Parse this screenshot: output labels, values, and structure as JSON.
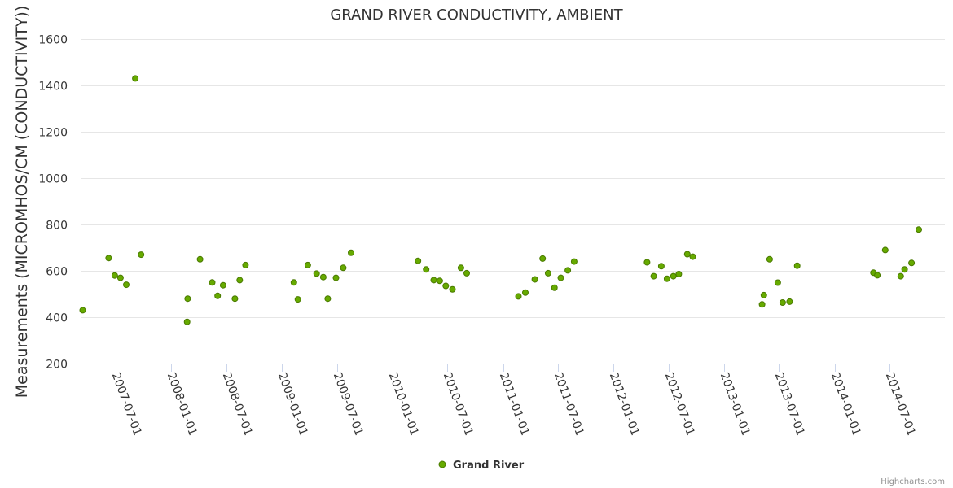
{
  "chart_data": {
    "type": "scatter",
    "title": "GRAND RIVER CONDUCTIVITY, AMBIENT",
    "xlabel": "",
    "ylabel": "Measurements (MICROMHOS/CM (CONDUCTIVITY))",
    "ylim": [
      200,
      1600
    ],
    "yticks": [
      200,
      400,
      600,
      800,
      1000,
      1200,
      1400,
      1600
    ],
    "xlim": [
      "2007-03-10",
      "2014-12-31"
    ],
    "xticks": [
      "2007-07-01",
      "2008-01-01",
      "2008-07-01",
      "2009-01-01",
      "2009-07-01",
      "2010-01-01",
      "2010-07-01",
      "2011-01-01",
      "2011-07-01",
      "2012-01-01",
      "2012-07-01",
      "2013-01-01",
      "2013-07-01",
      "2014-01-01",
      "2014-07-01"
    ],
    "grid": true,
    "legend_position": "bottom-center",
    "color": "#66aa00",
    "series": [
      {
        "name": "Grand River",
        "points": [
          [
            "2007-03-14",
            430
          ],
          [
            "2007-06-08",
            655
          ],
          [
            "2007-06-28",
            580
          ],
          [
            "2007-07-17",
            570
          ],
          [
            "2007-08-05",
            540
          ],
          [
            "2007-09-04",
            1430
          ],
          [
            "2007-09-23",
            670
          ],
          [
            "2008-02-22",
            380
          ],
          [
            "2008-02-24",
            480
          ],
          [
            "2008-04-05",
            650
          ],
          [
            "2008-05-15",
            550
          ],
          [
            "2008-06-02",
            492
          ],
          [
            "2008-06-20",
            538
          ],
          [
            "2008-07-29",
            480
          ],
          [
            "2008-08-14",
            560
          ],
          [
            "2008-09-02",
            625
          ],
          [
            "2009-02-09",
            550
          ],
          [
            "2009-02-22",
            477
          ],
          [
            "2009-03-27",
            625
          ],
          [
            "2009-04-25",
            588
          ],
          [
            "2009-05-17",
            573
          ],
          [
            "2009-06-01",
            480
          ],
          [
            "2009-06-28",
            570
          ],
          [
            "2009-07-22",
            613
          ],
          [
            "2009-08-17",
            678
          ],
          [
            "2010-03-26",
            643
          ],
          [
            "2010-04-22",
            606
          ],
          [
            "2010-05-17",
            560
          ],
          [
            "2010-06-06",
            557
          ],
          [
            "2010-06-26",
            535
          ],
          [
            "2010-07-18",
            520
          ],
          [
            "2010-08-15",
            613
          ],
          [
            "2010-09-03",
            590
          ],
          [
            "2011-02-21",
            490
          ],
          [
            "2011-03-16",
            506
          ],
          [
            "2011-04-16",
            563
          ],
          [
            "2011-05-12",
            653
          ],
          [
            "2011-05-30",
            590
          ],
          [
            "2011-06-20",
            527
          ],
          [
            "2011-07-11",
            570
          ],
          [
            "2011-08-03",
            602
          ],
          [
            "2011-08-24",
            640
          ],
          [
            "2012-04-21",
            637
          ],
          [
            "2012-05-13",
            577
          ],
          [
            "2012-06-07",
            620
          ],
          [
            "2012-06-26",
            566
          ],
          [
            "2012-07-17",
            577
          ],
          [
            "2012-08-04",
            586
          ],
          [
            "2012-09-01",
            672
          ],
          [
            "2012-09-19",
            661
          ],
          [
            "2013-05-06",
            455
          ],
          [
            "2013-05-12",
            495
          ],
          [
            "2013-05-31",
            650
          ],
          [
            "2013-06-27",
            549
          ],
          [
            "2013-07-13",
            463
          ],
          [
            "2013-08-05",
            467
          ],
          [
            "2013-08-30",
            622
          ],
          [
            "2014-05-09",
            592
          ],
          [
            "2014-05-22",
            581
          ],
          [
            "2014-06-17",
            690
          ],
          [
            "2014-08-07",
            577
          ],
          [
            "2014-08-20",
            606
          ],
          [
            "2014-09-12",
            634
          ],
          [
            "2014-10-06",
            778
          ]
        ]
      }
    ]
  },
  "legend": {
    "label": "Grand River"
  },
  "credit": "Highcharts.com"
}
